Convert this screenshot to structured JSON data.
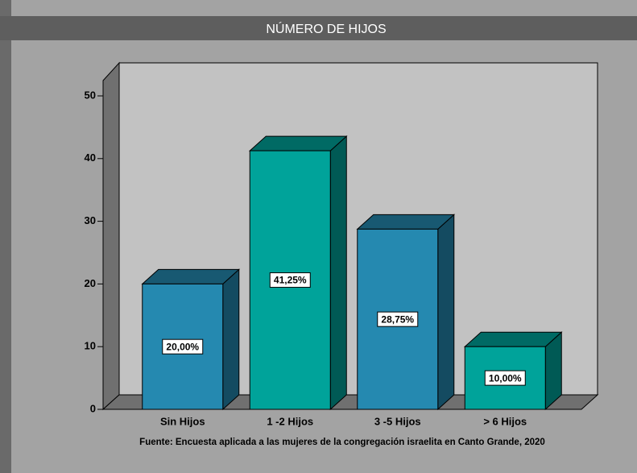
{
  "chart_data": {
    "type": "bar3d",
    "title": "NÚMERO DE HIJOS",
    "categories": [
      "Sin Hijos",
      "1 -2 Hijos",
      "3 -5 Hijos",
      "> 6 Hijos"
    ],
    "values": [
      20,
      41.25,
      28.75,
      10
    ],
    "value_labels": [
      "20,00%",
      "41,25%",
      "28,75%",
      "10,00%"
    ],
    "colors": [
      "#2589b0",
      "#00a39a",
      "#2589b0",
      "#00a39a"
    ],
    "ylim": [
      0,
      50
    ],
    "yticks": [
      0,
      10,
      20,
      30,
      40,
      50
    ],
    "footnote": "Fuente: Encuesta aplicada a las mujeres de la congregación israelita en Canto Grande, 2020"
  }
}
